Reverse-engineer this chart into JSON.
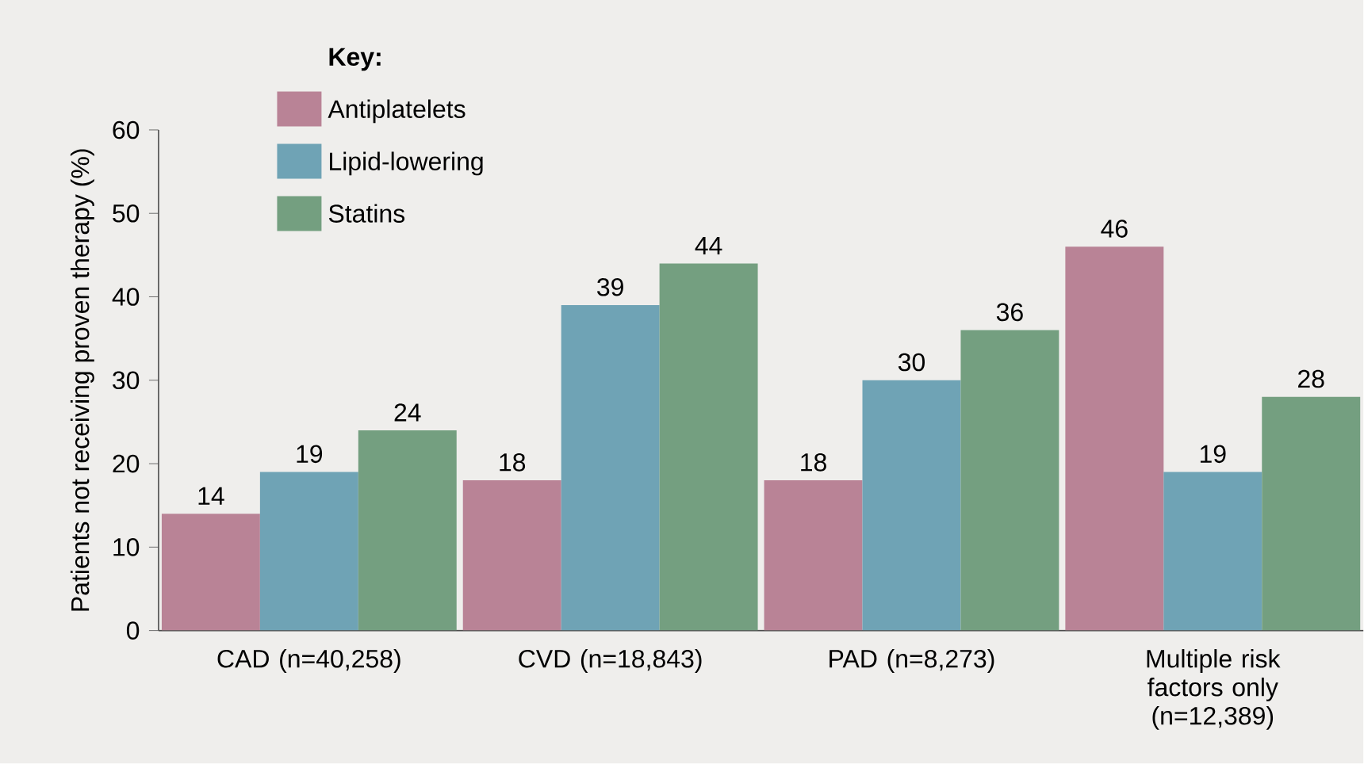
{
  "chart_data": {
    "type": "bar",
    "ylabel": "Patients not receiving proven therapy (%)",
    "legend_title": "Key:",
    "categories": [
      "CAD (n=40,258)",
      "CVD (n=18,843)",
      "PAD (n=8,273)",
      "Multiple risk factors only (n=12,389)"
    ],
    "series": [
      {
        "name": "Antiplatelets",
        "color": "#b98396",
        "values": [
          14,
          18,
          18,
          46
        ]
      },
      {
        "name": "Lipid-lowering",
        "color": "#6fa3b5",
        "values": [
          19,
          39,
          30,
          19
        ]
      },
      {
        "name": "Statins",
        "color": "#749f80",
        "values": [
          24,
          44,
          36,
          28
        ]
      }
    ],
    "ylim": [
      0,
      60
    ],
    "yticks": [
      0,
      10,
      20,
      30,
      40,
      50,
      60
    ],
    "data_labels": true,
    "legend": "top left",
    "grid": false
  }
}
